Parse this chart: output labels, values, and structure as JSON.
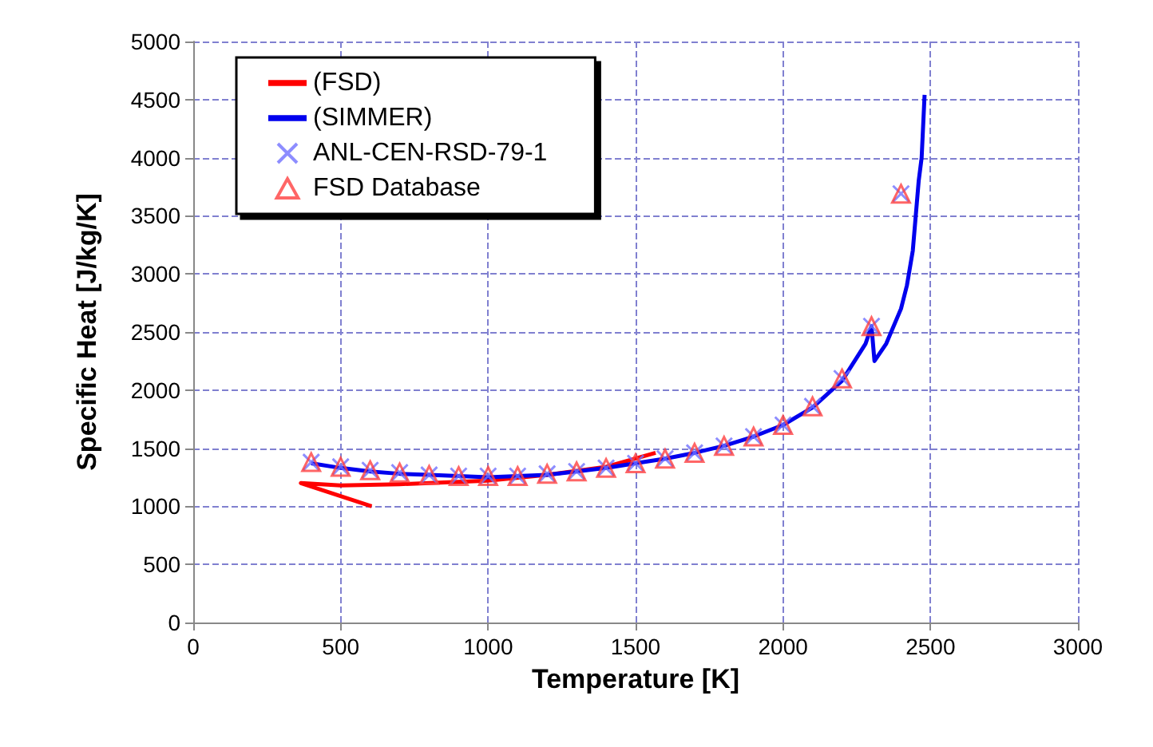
{
  "chart_data": {
    "type": "line",
    "xlabel": "Temperature [K]",
    "ylabel": "Specific Heat [J/kg/K]",
    "xlim": [
      0,
      3000
    ],
    "xticks": [
      0,
      500,
      1000,
      1500,
      2000,
      2500,
      3000
    ],
    "ylim": [
      0,
      5000
    ],
    "yticks": [
      0,
      500,
      1000,
      1500,
      2000,
      2500,
      3000,
      3500,
      4000,
      4500,
      5000
    ],
    "grid": true,
    "legend": "top left",
    "series": [
      {
        "name": "(FSD)",
        "color": "#ff0000",
        "marker": "none",
        "x": [
          605,
          365,
          500,
          700,
          900,
          1000,
          1200,
          1400,
          1568
        ],
        "values": [
          1000,
          1200,
          1180,
          1190,
          1210,
          1220,
          1270,
          1340,
          1460
        ]
      },
      {
        "name": "(SIMMER)",
        "color": "#0000ee",
        "marker": "none",
        "x": [
          400,
          500,
          600,
          700,
          800,
          900,
          1000,
          1100,
          1200,
          1300,
          1400,
          1500,
          1600,
          1700,
          1800,
          1900,
          2000,
          2100,
          2200,
          2280,
          2300,
          2310,
          2350,
          2400,
          2420,
          2440,
          2450,
          2460,
          2470,
          2480
        ],
        "values": [
          1370,
          1330,
          1300,
          1280,
          1270,
          1260,
          1250,
          1260,
          1270,
          1300,
          1330,
          1370,
          1410,
          1460,
          1520,
          1600,
          1700,
          1850,
          2080,
          2400,
          2550,
          2250,
          2400,
          2700,
          2900,
          3200,
          3500,
          3800,
          4000,
          4540
        ]
      },
      {
        "name": "ANL-CEN-RSD-79-1",
        "type": "scatter",
        "color": "#7070ff",
        "marker": "cross",
        "x": [
          400,
          500,
          600,
          700,
          800,
          900,
          1000,
          1100,
          1200,
          1300,
          1400,
          1500,
          1600,
          1700,
          1800,
          1900,
          2000,
          2100,
          2200,
          2300,
          2400
        ],
        "values": [
          1380,
          1340,
          1310,
          1290,
          1270,
          1260,
          1260,
          1260,
          1280,
          1300,
          1330,
          1370,
          1410,
          1460,
          1520,
          1600,
          1700,
          1860,
          2100,
          2550,
          3690
        ]
      },
      {
        "name": "FSD Database",
        "type": "scatter",
        "color": "#ff4040",
        "marker": "triangle",
        "x": [
          400,
          500,
          600,
          700,
          800,
          900,
          1000,
          1100,
          1200,
          1300,
          1400,
          1500,
          1600,
          1700,
          1800,
          1900,
          2000,
          2100,
          2200,
          2300,
          2400
        ],
        "values": [
          1380,
          1340,
          1310,
          1290,
          1270,
          1260,
          1260,
          1260,
          1280,
          1300,
          1330,
          1370,
          1410,
          1460,
          1520,
          1600,
          1700,
          1860,
          2100,
          2550,
          3690
        ]
      }
    ]
  }
}
